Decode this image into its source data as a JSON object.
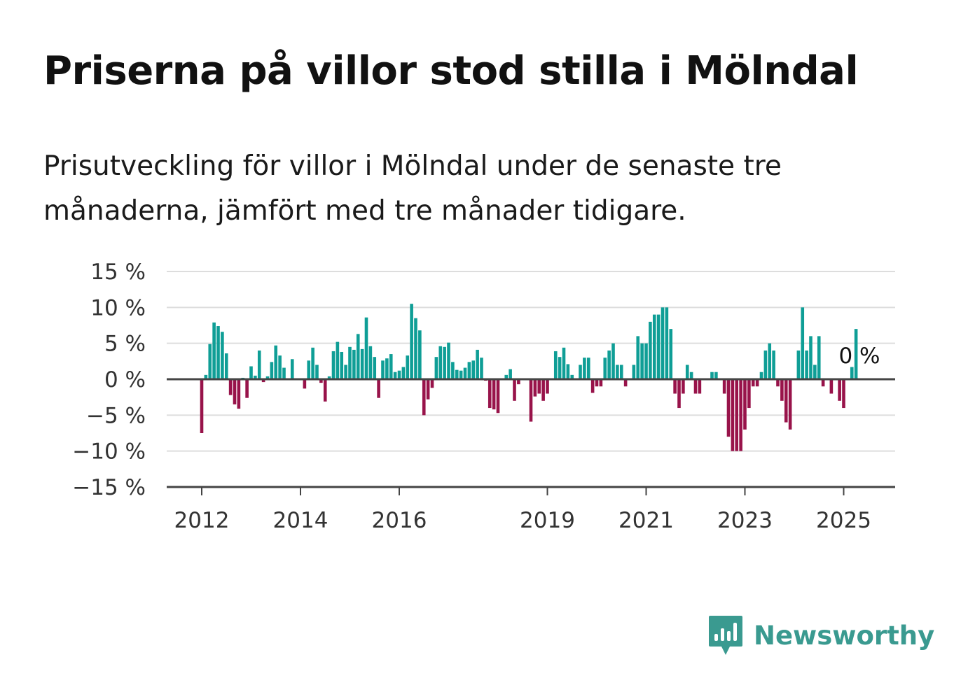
{
  "title": "Priserna på villor stod stilla i Mölndal",
  "subtitle": "Prisutveckling för villor i Mölndal under de senaste tre månaderna, jämfört med tre månader tidigare.",
  "brand": "Newsworthy",
  "colors": {
    "positive": "#0f9e96",
    "negative": "#98134a",
    "brand": "#3a9a90",
    "grid": "#dddddd",
    "axis": "#444444"
  },
  "chart_data": {
    "type": "bar",
    "start": "2012-01",
    "value_format": "percent",
    "ylim": [
      -15,
      15
    ],
    "yticks": [
      15,
      10,
      5,
      0,
      -5,
      -10,
      -15
    ],
    "ytick_labels": [
      "15 %",
      "10 %",
      "5 %",
      "0 %",
      "−5 %",
      "−10 %",
      "−15 %"
    ],
    "xticks": [
      {
        "label": "2012",
        "date": "2012-01"
      },
      {
        "label": "2014",
        "date": "2014-01"
      },
      {
        "label": "2016",
        "date": "2016-01"
      },
      {
        "label": "2019",
        "date": "2019-01"
      },
      {
        "label": "2021",
        "date": "2021-01"
      },
      {
        "label": "2023",
        "date": "2023-01"
      },
      {
        "label": "2025",
        "date": "2025-01"
      }
    ],
    "grid": true,
    "annotation": "0 %",
    "values": [
      -7.5,
      0.6,
      4.9,
      7.9,
      7.4,
      6.6,
      3.6,
      -2.2,
      -3.5,
      -4.1,
      0.2,
      -2.6,
      1.8,
      0.5,
      4.0,
      -0.4,
      0.4,
      2.4,
      4.7,
      3.3,
      1.6,
      0,
      2.8,
      0,
      0,
      -1.3,
      2.6,
      4.4,
      2.0,
      -0.5,
      -3.1,
      0.4,
      3.9,
      5.2,
      3.8,
      2.0,
      4.5,
      4.1,
      6.3,
      4.2,
      8.6,
      4.6,
      3.1,
      -2.6,
      2.6,
      2.9,
      3.5,
      1.0,
      1.2,
      1.7,
      3.3,
      10.5,
      8.5,
      6.8,
      -5.0,
      -2.8,
      -1.2,
      3.1,
      4.6,
      4.5,
      5.1,
      2.4,
      1.3,
      1.2,
      1.6,
      2.4,
      2.6,
      4.1,
      3.0,
      -0.2,
      -4.0,
      -4.2,
      -4.7,
      0,
      0.6,
      1.4,
      -3.0,
      -0.7,
      0,
      0,
      -5.9,
      -2.4,
      -2.0,
      -3.0,
      -2.0,
      0,
      3.9,
      3.1,
      4.4,
      2.1,
      0.6,
      0,
      2.0,
      3.0,
      3.0,
      -1.9,
      -1.0,
      -1.0,
      3.0,
      4.0,
      5.0,
      2.0,
      2.0,
      -1.0,
      0,
      2.0,
      6.0,
      5.0,
      5.0,
      8.0,
      9.0,
      9.0,
      10.0,
      10.0,
      7.0,
      -2.0,
      -4.0,
      -2.0,
      2.0,
      1.0,
      -2.0,
      -2.0,
      0,
      0,
      1.0,
      1.0,
      0,
      -2.0,
      -8.0,
      -10.0,
      -10.0,
      -10.0,
      -7.0,
      -4.0,
      -1.0,
      -1.0,
      1.0,
      4.0,
      5.0,
      4.0,
      -1.0,
      -3.0,
      -6.0,
      -7.0,
      0,
      4.0,
      10.0,
      4.0,
      6.0,
      2.0,
      6.0,
      -1.0,
      0,
      -2.0,
      0,
      -3.0,
      -4.0,
      0,
      1.7,
      7.0,
      0
    ]
  }
}
